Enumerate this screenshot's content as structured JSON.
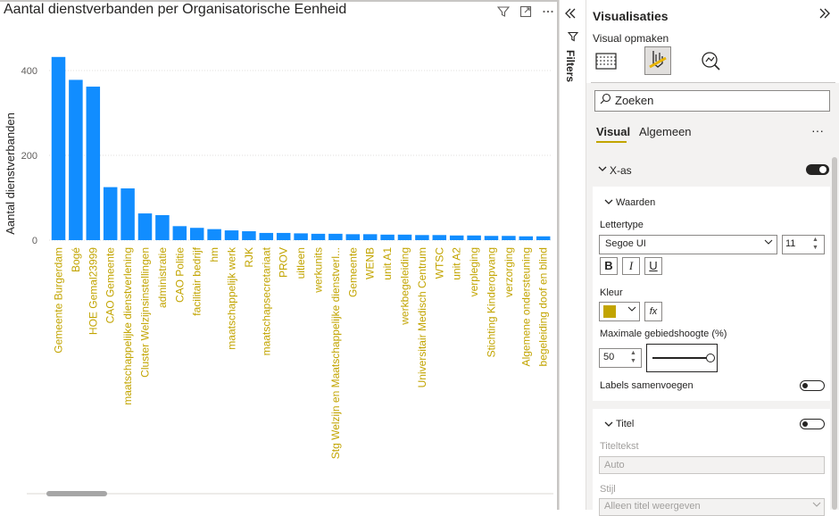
{
  "chart_pane": {
    "title": "Aantal dienstverbanden per Organisatorische Eenheid",
    "icons": [
      "filter-icon",
      "focus-mode-icon",
      "more-options-icon"
    ]
  },
  "chart_data": {
    "type": "bar",
    "title": "Aantal dienstverbanden per Organisatorische Eenheid",
    "ylabel": "Aantal dienstverbanden",
    "xlabel": "",
    "ylim": [
      0,
      450
    ],
    "yticks": [
      0,
      200,
      400
    ],
    "grid": true,
    "bar_color": "#118DFF",
    "xtick_color": "#C2A400",
    "categories": [
      "Gemeente Burgerdam",
      "Bogé",
      "HOE Gemal23999",
      "CAO Gemeente",
      "maatschappelijke dienstverlening",
      "Cluster Welzijnsinstellingen",
      "administratie",
      "CAO Politie",
      "facilitair bedrijf",
      "hm",
      "maatschappelijk werk",
      "RJK",
      "maatschapsecretariaat",
      "PROV",
      "uitleen",
      "werkunits",
      "Stg Welzijn en Maatschappelijke dienstverl...",
      "Gemeente",
      "WENB",
      "unit A1",
      "werkbegeleiding",
      "Universitair Medisch Centrum",
      "WTSC",
      "unit A2",
      "verpleging",
      "Stichting Kinderopvang",
      "verzorging",
      "Algemene ondersteuning",
      "begeleiding doof en blind"
    ],
    "values": [
      432,
      378,
      362,
      125,
      122,
      63,
      59,
      33,
      29,
      26,
      23,
      21,
      17,
      17,
      16,
      15,
      15,
      14,
      14,
      13,
      13,
      12,
      12,
      11,
      11,
      10,
      10,
      9,
      9
    ]
  },
  "filters": {
    "label": "Filters",
    "collapse_icon": "double-chevron-left-icon",
    "funnel_icon": "funnel-icon"
  },
  "viz_pane": {
    "title": "Visualisaties",
    "subtitle": "Visual opmaken",
    "expand_icon": "double-chevron-right-icon",
    "search_placeholder": "Zoeken",
    "tabs": [
      "Visual",
      "Algemeen"
    ],
    "more": "···",
    "xas": {
      "label": "X-as",
      "enabled": true
    },
    "waarden": {
      "label": "Waarden",
      "lettertype_label": "Lettertype",
      "font_value": "Segoe UI",
      "font_size": "11",
      "bold": "B",
      "italic": "I",
      "underline": "U",
      "kleur_label": "Kleur",
      "color": "#C2A400",
      "fx": "fx",
      "maxh_label": "Maximale gebiedshoogte (%)",
      "maxh_value": "50",
      "labels_label": "Labels samenvoegen",
      "labels_enabled": false
    },
    "titel": {
      "label": "Titel",
      "enabled": false,
      "titeltekst_label": "Titeltekst",
      "titeltekst_value": "Auto",
      "stijl_label": "Stijl",
      "stijl_value": "Alleen titel weergeven"
    }
  }
}
